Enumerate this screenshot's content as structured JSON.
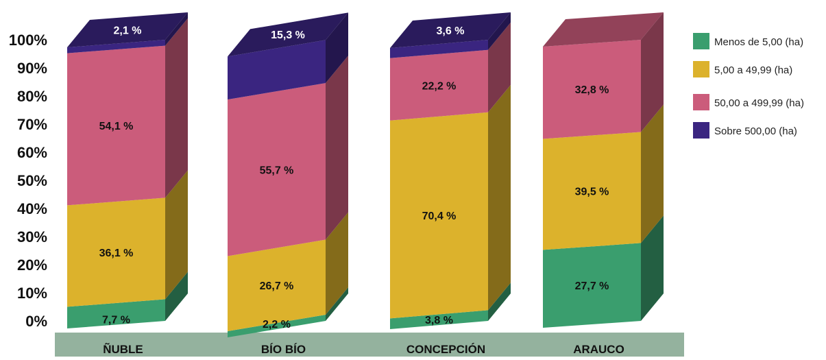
{
  "chart_data": {
    "type": "bar",
    "stacked": true,
    "percent": true,
    "three_d": true,
    "categories": [
      "ÑUBLE",
      "BÍO BÍO",
      "CONCEPCIÓN",
      "ARAUCO"
    ],
    "series": [
      {
        "name": "Menos de 5,00 (ha)",
        "color": "#3a9e6e",
        "values": [
          7.7,
          2.2,
          3.8,
          27.7
        ],
        "labels": [
          "7,7 %",
          "2,2 %",
          "3,8 %",
          "27,7 %"
        ]
      },
      {
        "name": "5,00 a 49,99 (ha)",
        "color": "#dcb22c",
        "values": [
          36.1,
          26.7,
          70.4,
          39.5
        ],
        "labels": [
          "36,1 %",
          "26,7 %",
          "70,4 %",
          "39,5 %"
        ]
      },
      {
        "name": "50,00 a 499,99 (ha)",
        "color": "#cb5c7b",
        "values": [
          54.1,
          55.7,
          22.2,
          32.8
        ],
        "labels": [
          "54,1 %",
          "55,7 %",
          "22,2 %",
          "32,8 %"
        ]
      },
      {
        "name": "Sobre 500,00 (ha)",
        "color": "#3a2580",
        "values": [
          2.1,
          15.3,
          3.6,
          0
        ],
        "labels": [
          "2,1 %",
          "15,3 %",
          "3,6 %",
          ""
        ]
      }
    ],
    "ylim": [
      0,
      100
    ],
    "yticks": [
      "0%",
      "10%",
      "20%",
      "30%",
      "40%",
      "50%",
      "60%",
      "70%",
      "80%",
      "90%",
      "100%"
    ],
    "legend_position": "right",
    "category_band_color": "#94b29e",
    "grid": false
  }
}
